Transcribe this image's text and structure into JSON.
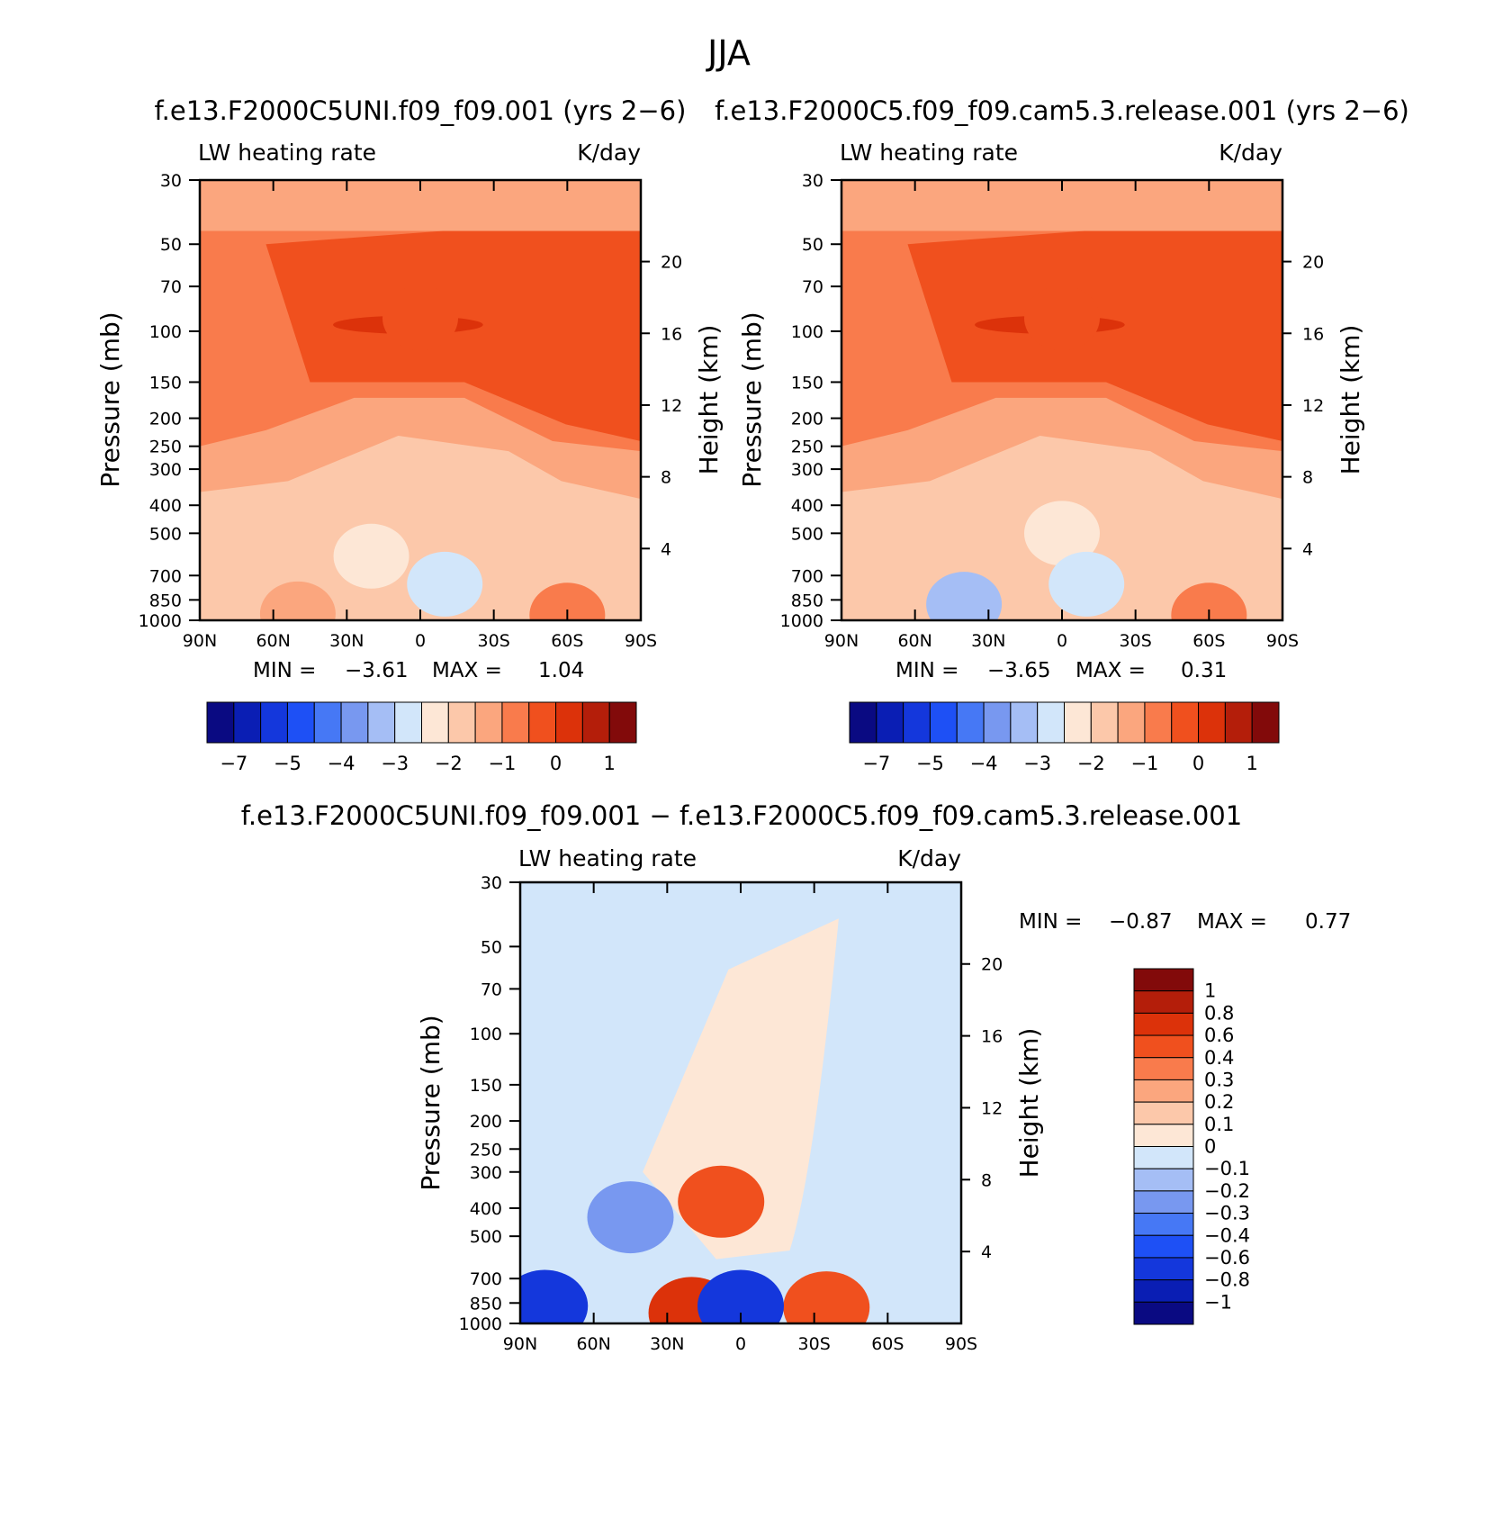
{
  "figure_title": "JJA",
  "chart_data": [
    {
      "type": "heatmap",
      "title": "f.e13.F2000C5UNI.f09_f09.001 (yrs 2−6)",
      "left_label": "LW heating rate",
      "right_label": "K/day",
      "ylabel": "Pressure (mb)",
      "ylabel_right": "Height (km)",
      "x_ticks": [
        "90N",
        "60N",
        "30N",
        "0",
        "30S",
        "60S",
        "90S"
      ],
      "y_ticks": [
        "30",
        "50",
        "70",
        "100",
        "150",
        "200",
        "250",
        "300",
        "400",
        "500",
        "700",
        "850",
        "1000"
      ],
      "y_right_ticks": [
        "20",
        "16",
        "12",
        "8",
        "4"
      ],
      "xlim": [
        90,
        -90
      ],
      "ylim": [
        1000,
        30
      ],
      "y_scale": "log",
      "min_label": "MIN =",
      "min_value": "−3.61",
      "max_label": "MAX =",
      "max_value": "1.04",
      "colorbar_ticks": [
        "−7",
        "−5",
        "−4",
        "−3",
        "−2",
        "−1",
        "0",
        "1"
      ],
      "fields": [
        {
          "lat": 0,
          "p": 90,
          "value": -0.5
        },
        {
          "lat": 20,
          "p": 600,
          "value": -2.1
        },
        {
          "lat": -10,
          "p": 750,
          "value": -2.8
        },
        {
          "lat": -60,
          "p": 960,
          "value": -1.0
        },
        {
          "lat": 50,
          "p": 950,
          "value": -1.5
        }
      ]
    },
    {
      "type": "heatmap",
      "title": "f.e13.F2000C5.f09_f09.cam5.3.release.001 (yrs 2−6)",
      "left_label": "LW heating rate",
      "right_label": "K/day",
      "ylabel": "Pressure (mb)",
      "ylabel_right": "Height (km)",
      "x_ticks": [
        "90N",
        "60N",
        "30N",
        "0",
        "30S",
        "60S",
        "90S"
      ],
      "y_ticks": [
        "30",
        "50",
        "70",
        "100",
        "150",
        "200",
        "250",
        "300",
        "400",
        "500",
        "700",
        "850",
        "1000"
      ],
      "y_right_ticks": [
        "20",
        "16",
        "12",
        "8",
        "4"
      ],
      "xlim": [
        90,
        -90
      ],
      "ylim": [
        1000,
        30
      ],
      "y_scale": "log",
      "min_label": "MIN =",
      "min_value": "−3.65",
      "max_label": "MAX =",
      "max_value": "0.31",
      "colorbar_ticks": [
        "−7",
        "−5",
        "−4",
        "−3",
        "−2",
        "−1",
        "0",
        "1"
      ],
      "fields": [
        {
          "lat": 0,
          "p": 90,
          "value": -0.5
        },
        {
          "lat": 0,
          "p": 500,
          "value": -2.4
        },
        {
          "lat": -10,
          "p": 750,
          "value": -2.9
        },
        {
          "lat": 40,
          "p": 880,
          "value": -3.2
        },
        {
          "lat": -60,
          "p": 960,
          "value": -1.0
        }
      ]
    },
    {
      "type": "heatmap",
      "title": "f.e13.F2000C5UNI.f09_f09.001 − f.e13.F2000C5.f09_f09.cam5.3.release.001",
      "left_label": "LW heating rate",
      "right_label": "K/day",
      "ylabel": "Pressure (mb)",
      "ylabel_right": "Height (km)",
      "x_ticks": [
        "90N",
        "60N",
        "30N",
        "0",
        "30S",
        "60S",
        "90S"
      ],
      "y_ticks": [
        "30",
        "50",
        "70",
        "100",
        "150",
        "200",
        "250",
        "300",
        "400",
        "500",
        "700",
        "850",
        "1000"
      ],
      "y_right_ticks": [
        "20",
        "16",
        "12",
        "8",
        "4"
      ],
      "xlim": [
        90,
        -90
      ],
      "ylim": [
        1000,
        30
      ],
      "y_scale": "log",
      "min_label": "MIN =",
      "min_value": "−0.87",
      "max_label": "MAX =",
      "max_value": "0.77",
      "colorbar_ticks": [
        "1",
        "0.8",
        "0.6",
        "0.4",
        "0.3",
        "0.2",
        "0.1",
        "0",
        "−0.1",
        "−0.2",
        "−0.3",
        "−0.4",
        "−0.6",
        "−0.8",
        "−1"
      ],
      "fields": [
        {
          "lat": 8,
          "p": 380,
          "value": 0.45
        },
        {
          "lat": -35,
          "p": 880,
          "value": 0.55
        },
        {
          "lat": 20,
          "p": 920,
          "value": 0.6
        },
        {
          "lat": 0,
          "p": 870,
          "value": -0.7
        },
        {
          "lat": 80,
          "p": 870,
          "value": -0.7
        },
        {
          "lat": 45,
          "p": 430,
          "value": -0.25
        }
      ]
    }
  ],
  "palette": [
    "#0a0a82",
    "#0a1eb4",
    "#1437dc",
    "#1e50f5",
    "#4678f5",
    "#7898f0",
    "#a5bef5",
    "#d2e6fa",
    "#fde7d6",
    "#fcc8aa",
    "#fba67e",
    "#f97b4c",
    "#f0501e",
    "#dc320a",
    "#b41e0a",
    "#820a0a"
  ]
}
